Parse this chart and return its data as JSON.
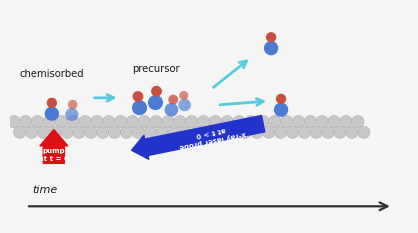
{
  "bg_color": "#f5f5f5",
  "surface_ball_color": "#c8c8c8",
  "surface_ball_edge": "#aaaaaa",
  "co_blue_color": "#4a7ad4",
  "co_red_color": "#c85040",
  "label_chemisorbed": "chemisorbed",
  "label_precursor": "precursor",
  "label_time": "time",
  "pump_text": "pump\nat t = 0",
  "probe_text": "x-ray laser probe\nat t > 0",
  "pump_color": "#dd1111",
  "probe_color": "#2233cc",
  "arrow_cyan": "#55ccdd",
  "time_arrow_color": "#303030"
}
